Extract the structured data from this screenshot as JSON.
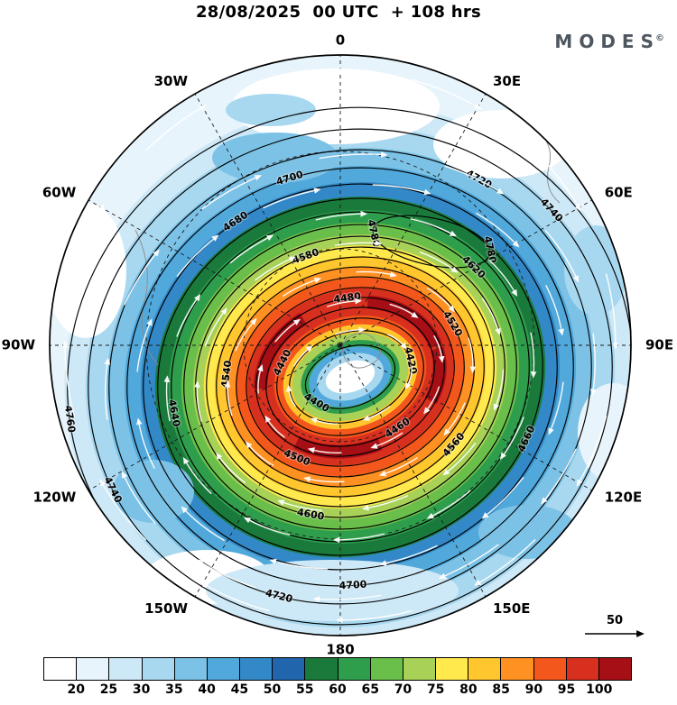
{
  "header": {
    "title": "28/08/2025  00 UTC  + 108 hrs",
    "logo": "MODES",
    "logo_mark": "©"
  },
  "chart_data": {
    "type": "heatmap",
    "title": "28/08/2025 00 UTC + 108 hrs",
    "meridians": [
      "0",
      "30E",
      "60E",
      "90E",
      "120E",
      "150E",
      "180",
      "150W",
      "120W",
      "90W",
      "60W",
      "30W"
    ],
    "shading": {
      "ticks": [
        20,
        25,
        30,
        35,
        40,
        45,
        50,
        55,
        60,
        65,
        70,
        75,
        80,
        85,
        90,
        95,
        100
      ],
      "colors": [
        "#ffffff",
        "#e8f4fb",
        "#cde8f6",
        "#a8d8f0",
        "#7cc2e6",
        "#51a8da",
        "#3389c8",
        "#2166ac",
        "#1a7a3c",
        "#2f9e4c",
        "#6abf4b",
        "#a8d158",
        "#ffe94d",
        "#ffc62e",
        "#ff9122",
        "#f4571c",
        "#d7301f",
        "#a50f15"
      ]
    },
    "contours": {
      "levels": [
        4400,
        4420,
        4440,
        4460,
        4480,
        4500,
        4520,
        4540,
        4560,
        4580,
        4600,
        4620,
        4640,
        4660,
        4680,
        4700,
        4720,
        4740,
        4760,
        4780
      ],
      "interval": 20
    },
    "streamlines": {
      "color": "#ffffff",
      "reference_label": "50"
    }
  }
}
